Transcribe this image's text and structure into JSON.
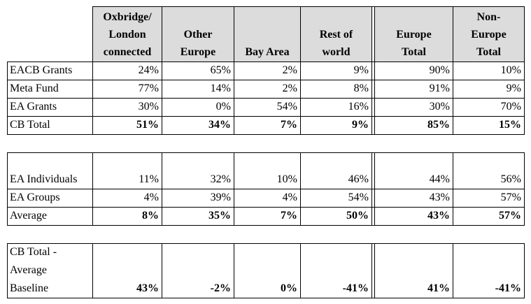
{
  "columns": [
    [
      "Oxbridge/",
      "London",
      "connected"
    ],
    [
      "Other",
      "Europe"
    ],
    [
      "Bay Area"
    ],
    [
      "Rest of",
      "world"
    ],
    [
      "Europe",
      "Total"
    ],
    [
      "Non-",
      "Europe",
      "Total"
    ]
  ],
  "sections": [
    {
      "rows": [
        {
          "label": "EACB Grants",
          "values": [
            "24%",
            "65%",
            "2%",
            "9%",
            "90%",
            "10%"
          ],
          "bold": false
        },
        {
          "label": "Meta Fund",
          "values": [
            "77%",
            "14%",
            "2%",
            "8%",
            "91%",
            "9%"
          ],
          "bold": false
        },
        {
          "label": "EA Grants",
          "values": [
            "30%",
            "0%",
            "54%",
            "16%",
            "30%",
            "70%"
          ],
          "bold": false
        },
        {
          "label": "CB Total",
          "values": [
            "51%",
            "34%",
            "7%",
            "9%",
            "85%",
            "15%"
          ],
          "bold": true
        }
      ]
    },
    {
      "rows": [
        {
          "label": "EA Individuals",
          "values": [
            "11%",
            "32%",
            "10%",
            "46%",
            "44%",
            "56%"
          ],
          "bold": false
        },
        {
          "label": "EA Groups",
          "values": [
            "4%",
            "39%",
            "4%",
            "54%",
            "43%",
            "57%"
          ],
          "bold": false
        },
        {
          "label": "Average",
          "values": [
            "8%",
            "35%",
            "7%",
            "50%",
            "43%",
            "57%"
          ],
          "bold": true
        }
      ]
    },
    {
      "rows": [
        {
          "label_lines": [
            "CB Total -",
            "Average",
            "Baseline"
          ],
          "values": [
            "43%",
            "-2%",
            "0%",
            "-41%",
            "41%",
            "-41%"
          ],
          "bold": true
        }
      ]
    }
  ]
}
